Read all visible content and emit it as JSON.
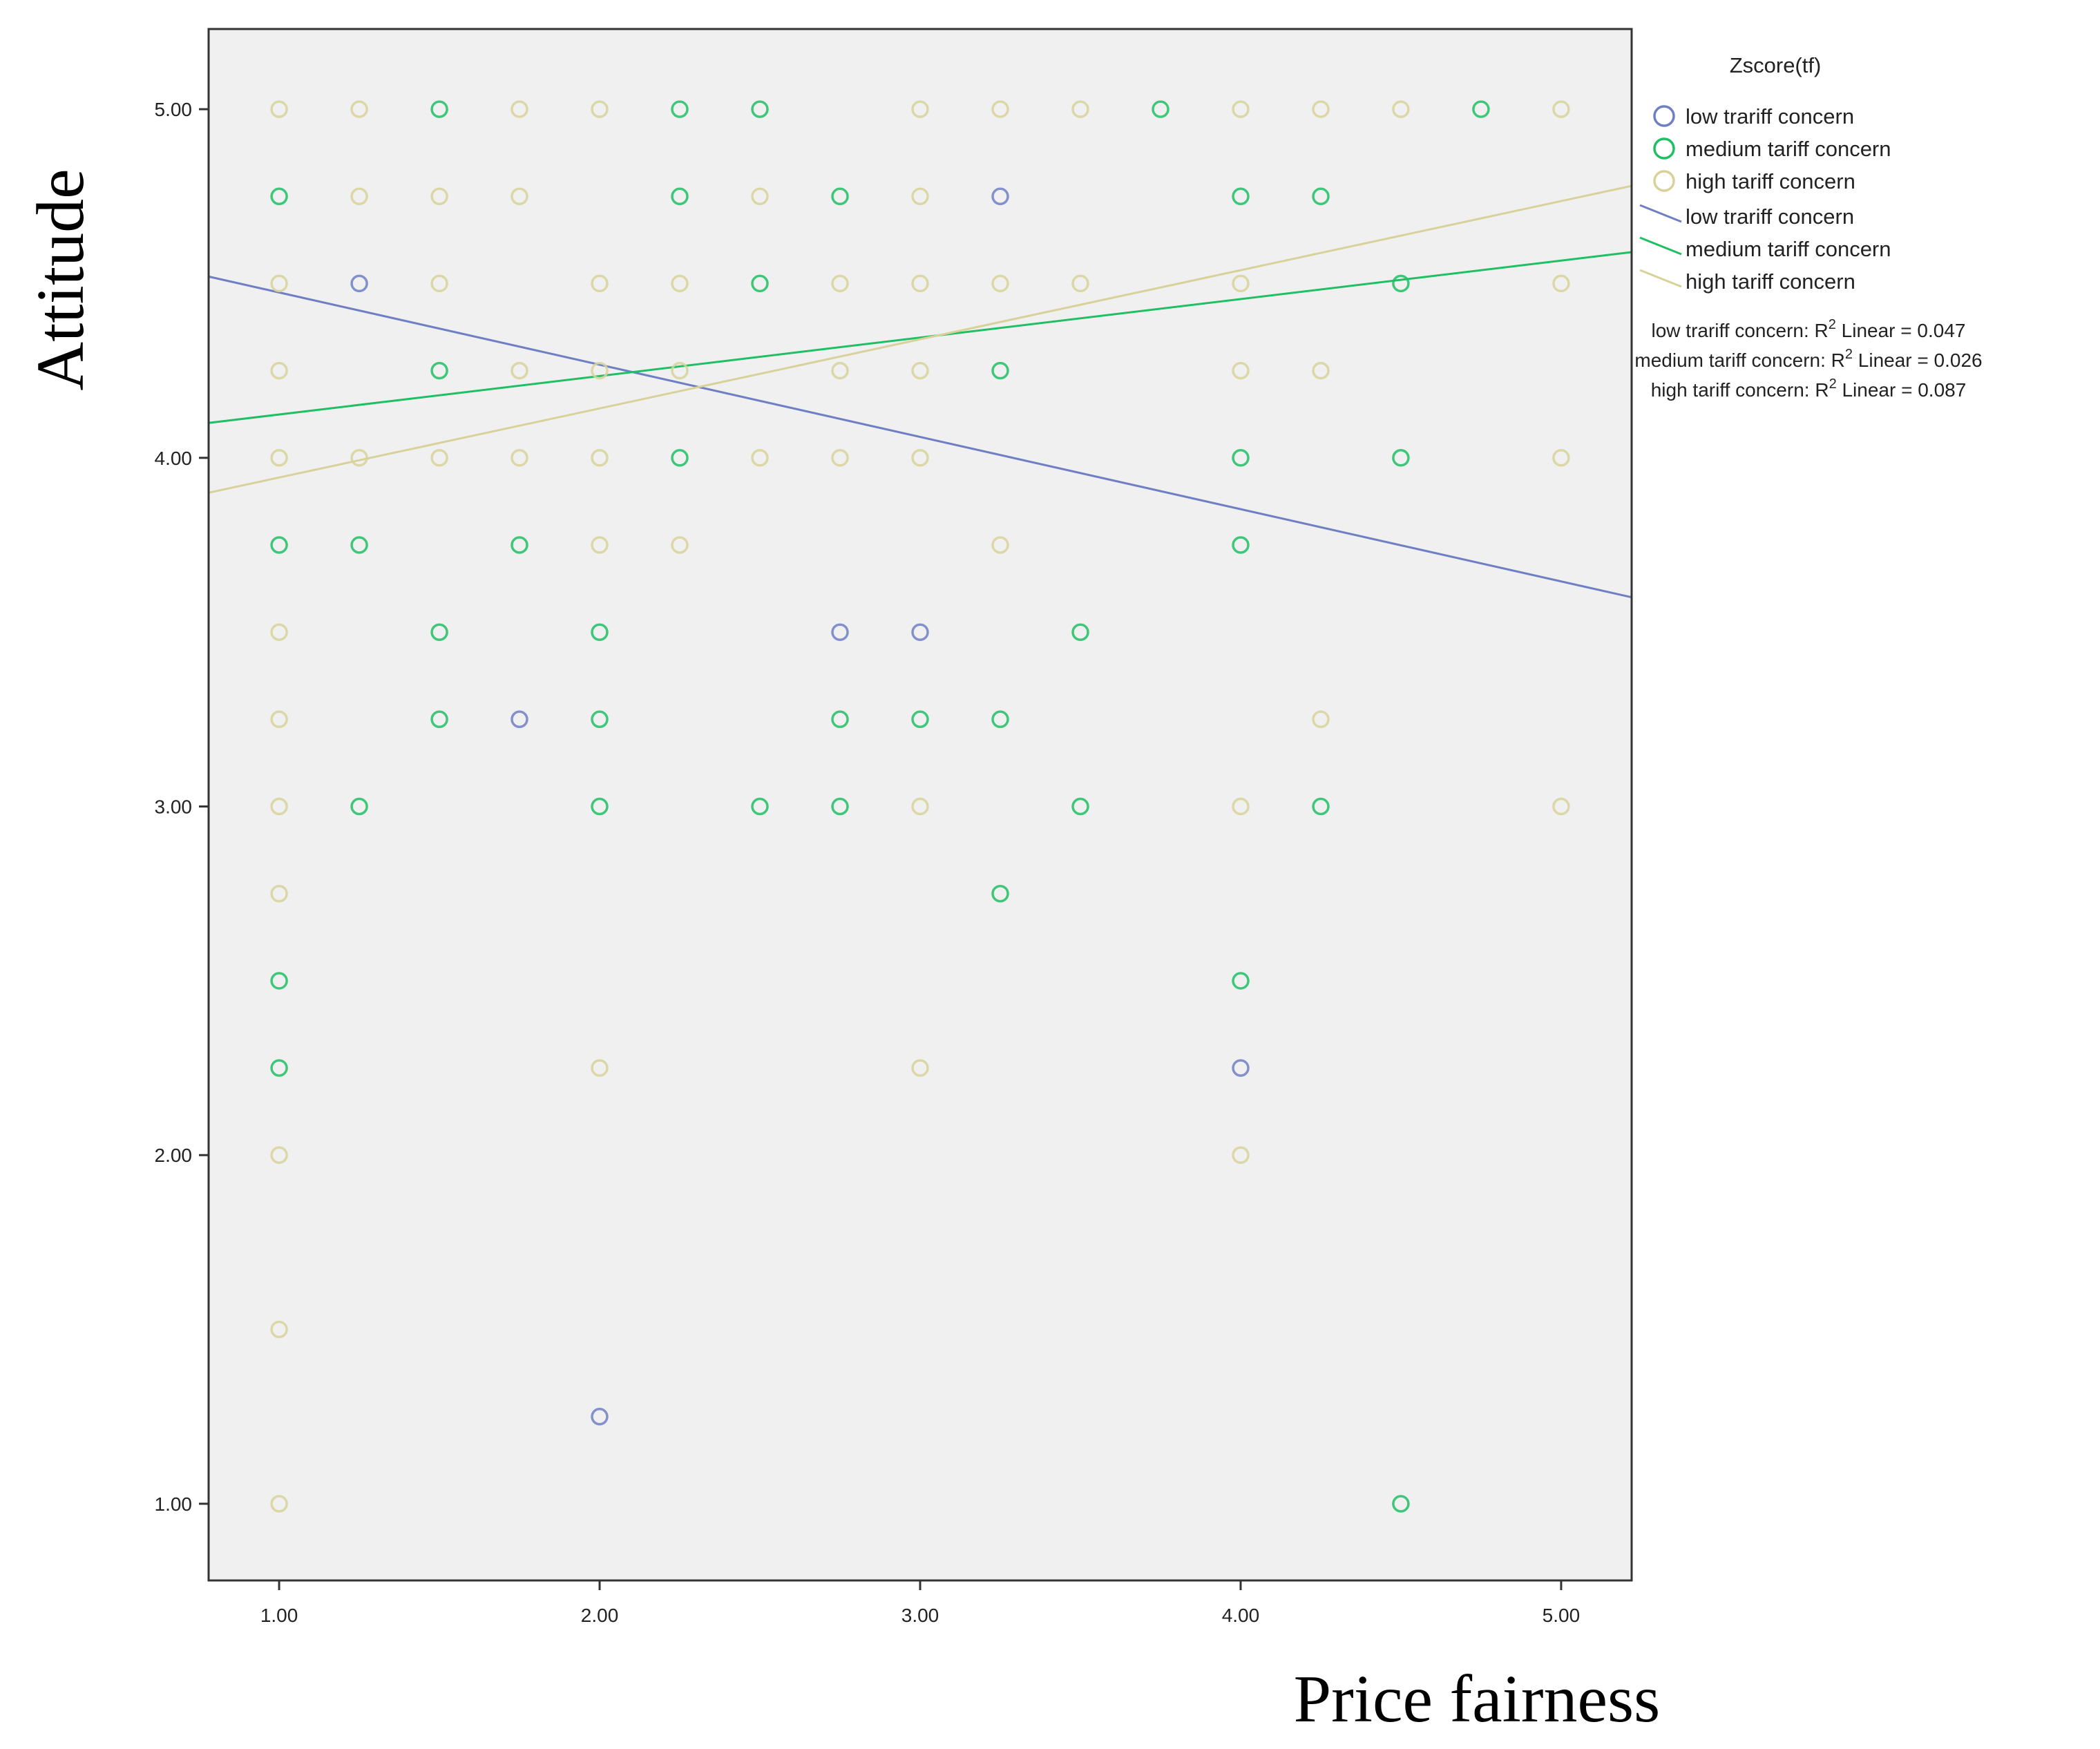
{
  "chart_data": {
    "type": "scatter",
    "title": "",
    "xlabel": "Price fairness",
    "ylabel": "Attitude",
    "xlim": [
      0.78,
      5.22
    ],
    "ylim": [
      0.78,
      5.23
    ],
    "x_ticks": [
      "1.00",
      "2.00",
      "3.00",
      "4.00",
      "5.00"
    ],
    "y_ticks": [
      "1.00",
      "2.00",
      "3.00",
      "4.00",
      "5.00"
    ],
    "grid": false,
    "legend": {
      "title": "Zscore(tf)",
      "position": "right",
      "marker_entries": [
        "low trariff concern",
        "medium tariff concern",
        "high tariff concern"
      ],
      "line_entries": [
        "low trariff concern",
        "medium tariff concern",
        "high tariff concern"
      ],
      "r2_lines": [
        {
          "prefix": "low trariff concern: R",
          "sup": "2",
          "suffix": " Linear = 0.047"
        },
        {
          "prefix": "medium tariff concern: R",
          "sup": "2",
          "suffix": " Linear = 0.026"
        },
        {
          "prefix": "high tariff concern: R",
          "sup": "2",
          "suffix": " Linear = 0.087"
        }
      ]
    },
    "series": [
      {
        "color": "#6f7fc4",
        "points": [
          [
            1.25,
            4.5
          ],
          [
            3.25,
            4.75
          ],
          [
            2.75,
            3.5
          ],
          [
            3.0,
            3.5
          ],
          [
            1.75,
            3.25
          ],
          [
            4.0,
            2.25
          ],
          [
            2.0,
            1.25
          ]
        ],
        "fit": {
          "x": [
            0.78,
            5.22
          ],
          "y": [
            4.52,
            3.6
          ]
        }
      },
      {
        "color": "#1fbf64",
        "points": [
          [
            1.5,
            5.0
          ],
          [
            2.5,
            5.0
          ],
          [
            2.25,
            5.0
          ],
          [
            3.75,
            5.0
          ],
          [
            4.75,
            5.0
          ],
          [
            1.0,
            4.75
          ],
          [
            2.25,
            4.75
          ],
          [
            2.75,
            4.75
          ],
          [
            4.0,
            4.75
          ],
          [
            4.25,
            4.75
          ],
          [
            2.5,
            4.5
          ],
          [
            4.5,
            4.5
          ],
          [
            1.5,
            4.25
          ],
          [
            3.25,
            4.25
          ],
          [
            4.0,
            4.0
          ],
          [
            4.5,
            4.0
          ],
          [
            2.25,
            4.0
          ],
          [
            1.0,
            3.75
          ],
          [
            1.25,
            3.75
          ],
          [
            1.75,
            3.75
          ],
          [
            4.0,
            3.75
          ],
          [
            2.0,
            3.5
          ],
          [
            1.5,
            3.5
          ],
          [
            3.5,
            3.5
          ],
          [
            1.5,
            3.25
          ],
          [
            2.0,
            3.25
          ],
          [
            2.75,
            3.25
          ],
          [
            3.0,
            3.25
          ],
          [
            3.25,
            3.25
          ],
          [
            1.25,
            3.0
          ],
          [
            2.0,
            3.0
          ],
          [
            2.5,
            3.0
          ],
          [
            2.75,
            3.0
          ],
          [
            3.5,
            3.0
          ],
          [
            4.25,
            3.0
          ],
          [
            3.25,
            2.75
          ],
          [
            1.0,
            2.5
          ],
          [
            4.0,
            2.5
          ],
          [
            1.0,
            2.25
          ],
          [
            4.5,
            1.0
          ]
        ],
        "fit": {
          "x": [
            0.78,
            5.22
          ],
          "y": [
            4.1,
            4.59
          ]
        }
      },
      {
        "color": "#d8d29a",
        "points": [
          [
            1.0,
            5.0
          ],
          [
            1.25,
            5.0
          ],
          [
            1.75,
            5.0
          ],
          [
            2.0,
            5.0
          ],
          [
            3.0,
            5.0
          ],
          [
            3.25,
            5.0
          ],
          [
            3.5,
            5.0
          ],
          [
            4.0,
            5.0
          ],
          [
            4.25,
            5.0
          ],
          [
            4.5,
            5.0
          ],
          [
            5.0,
            5.0
          ],
          [
            1.25,
            4.75
          ],
          [
            1.5,
            4.75
          ],
          [
            1.75,
            4.75
          ],
          [
            2.5,
            4.75
          ],
          [
            3.0,
            4.75
          ],
          [
            1.0,
            4.5
          ],
          [
            1.5,
            4.5
          ],
          [
            2.0,
            4.5
          ],
          [
            2.25,
            4.5
          ],
          [
            2.75,
            4.5
          ],
          [
            3.0,
            4.5
          ],
          [
            3.25,
            4.5
          ],
          [
            3.5,
            4.5
          ],
          [
            4.0,
            4.5
          ],
          [
            5.0,
            4.5
          ],
          [
            1.0,
            4.25
          ],
          [
            1.75,
            4.25
          ],
          [
            2.0,
            4.25
          ],
          [
            2.25,
            4.25
          ],
          [
            2.75,
            4.25
          ],
          [
            3.0,
            4.25
          ],
          [
            4.0,
            4.25
          ],
          [
            4.25,
            4.25
          ],
          [
            1.0,
            4.0
          ],
          [
            1.25,
            4.0
          ],
          [
            1.5,
            4.0
          ],
          [
            1.75,
            4.0
          ],
          [
            2.0,
            4.0
          ],
          [
            2.5,
            4.0
          ],
          [
            2.75,
            4.0
          ],
          [
            3.0,
            4.0
          ],
          [
            5.0,
            4.0
          ],
          [
            2.0,
            3.75
          ],
          [
            2.25,
            3.75
          ],
          [
            3.25,
            3.75
          ],
          [
            1.0,
            3.5
          ],
          [
            1.0,
            3.25
          ],
          [
            4.25,
            3.25
          ],
          [
            1.0,
            3.0
          ],
          [
            3.0,
            3.0
          ],
          [
            4.0,
            3.0
          ],
          [
            5.0,
            3.0
          ],
          [
            1.0,
            2.75
          ],
          [
            2.0,
            2.25
          ],
          [
            3.0,
            2.25
          ],
          [
            1.0,
            2.0
          ],
          [
            4.0,
            2.0
          ],
          [
            1.0,
            1.5
          ],
          [
            1.0,
            1.0
          ]
        ],
        "fit": {
          "x": [
            0.78,
            5.22
          ],
          "y": [
            3.9,
            4.78
          ]
        }
      }
    ]
  }
}
